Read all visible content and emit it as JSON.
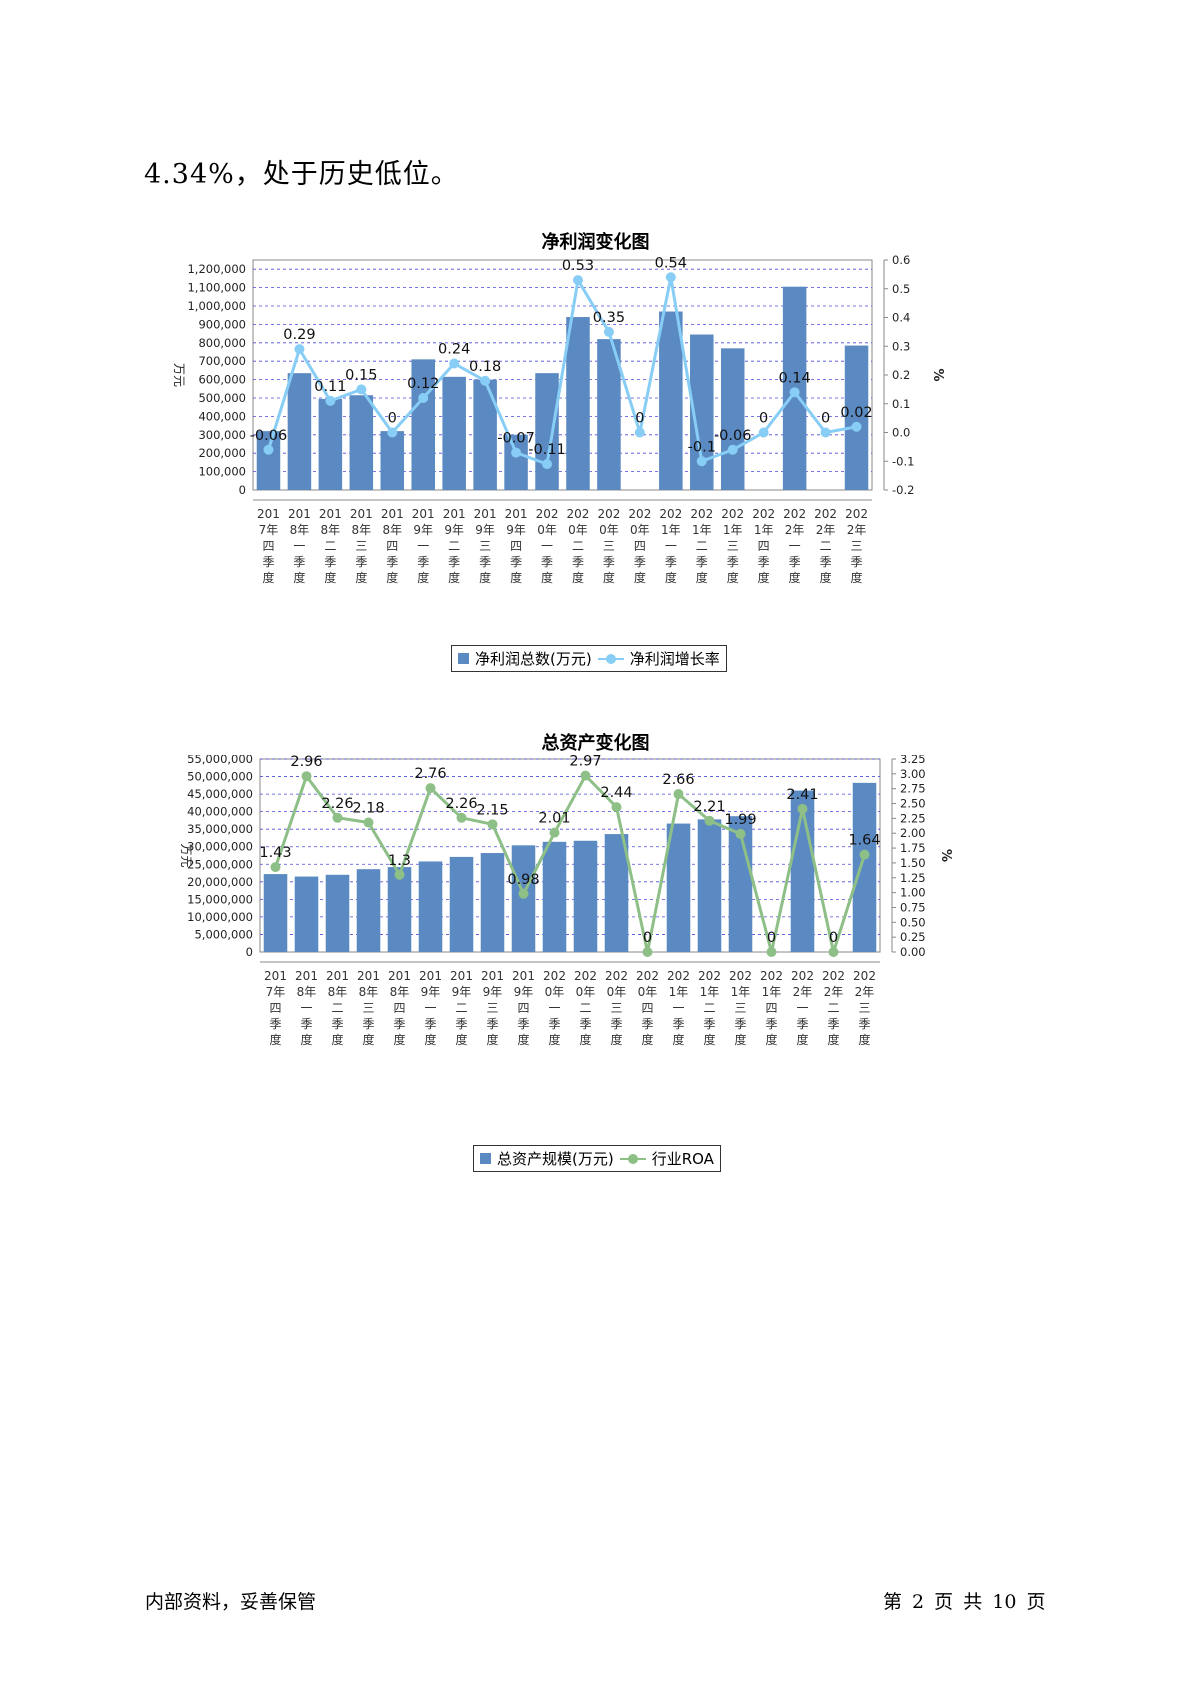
{
  "intro_text": "4.34%，处于历史低位。",
  "footer": {
    "left": "内部资料，妥善保管",
    "right": "第 2 页  共 10 页"
  },
  "colors": {
    "bar": "#5b8ac2",
    "line1": "#87cdf5",
    "line2": "#8dbf87",
    "grid": "#4b4bd8"
  },
  "categories": [
    [
      "201",
      "7年",
      "四",
      "季",
      "度"
    ],
    [
      "201",
      "8年",
      "一",
      "季",
      "度"
    ],
    [
      "201",
      "8年",
      "二",
      "季",
      "度"
    ],
    [
      "201",
      "8年",
      "三",
      "季",
      "度"
    ],
    [
      "201",
      "8年",
      "四",
      "季",
      "度"
    ],
    [
      "201",
      "9年",
      "一",
      "季",
      "度"
    ],
    [
      "201",
      "9年",
      "二",
      "季",
      "度"
    ],
    [
      "201",
      "9年",
      "三",
      "季",
      "度"
    ],
    [
      "201",
      "9年",
      "四",
      "季",
      "度"
    ],
    [
      "202",
      "0年",
      "一",
      "季",
      "度"
    ],
    [
      "202",
      "0年",
      "二",
      "季",
      "度"
    ],
    [
      "202",
      "0年",
      "三",
      "季",
      "度"
    ],
    [
      "202",
      "0年",
      "四",
      "季",
      "度"
    ],
    [
      "202",
      "1年",
      "一",
      "季",
      "度"
    ],
    [
      "202",
      "1年",
      "二",
      "季",
      "度"
    ],
    [
      "202",
      "1年",
      "三",
      "季",
      "度"
    ],
    [
      "202",
      "1年",
      "四",
      "季",
      "度"
    ],
    [
      "202",
      "2年",
      "一",
      "季",
      "度"
    ],
    [
      "202",
      "2年",
      "二",
      "季",
      "度"
    ],
    [
      "202",
      "2年",
      "三",
      "季",
      "度"
    ]
  ],
  "chart_data": [
    {
      "type": "bar",
      "title": "净利润变化图",
      "ylabel": "万元",
      "y2label": "%",
      "ylim": [
        0,
        1250000
      ],
      "y2lim": [
        -0.2,
        0.6
      ],
      "yticks": [
        "0",
        "100,000",
        "200,000",
        "300,000",
        "400,000",
        "500,000",
        "600,000",
        "700,000",
        "800,000",
        "900,000",
        "1,000,000",
        "1,100,000",
        "1,200,000"
      ],
      "yticks_values": [
        0,
        100000,
        200000,
        300000,
        400000,
        500000,
        600000,
        700000,
        800000,
        900000,
        1000000,
        1100000,
        1200000
      ],
      "y2ticks": [
        "-0.2",
        "-0.1",
        "0.0",
        "0.1",
        "0.2",
        "0.3",
        "0.4",
        "0.5",
        "0.6"
      ],
      "y2ticks_values": [
        -0.2,
        -0.1,
        0,
        0.1,
        0.2,
        0.3,
        0.4,
        0.5,
        0.6
      ],
      "legend_position": "bottom",
      "series": [
        {
          "name": "净利润总数(万元)",
          "kind": "bar",
          "values": [
            320000,
            635000,
            495000,
            515000,
            320000,
            710000,
            615000,
            600000,
            300000,
            635000,
            940000,
            820000,
            0,
            970000,
            845000,
            770000,
            0,
            1105000,
            0,
            785000
          ]
        },
        {
          "name": "净利润增长率",
          "kind": "line",
          "axis": "right",
          "values": [
            -0.06,
            0.29,
            0.11,
            0.15,
            0,
            0.12,
            0.24,
            0.18,
            -0.07,
            -0.11,
            0.53,
            0.35,
            0,
            0.54,
            -0.1,
            -0.06,
            0,
            0.14,
            0,
            0.02
          ],
          "labels": [
            "-0.06",
            "0.29",
            "0.11",
            "0.15",
            "0",
            "0.12",
            "0.24",
            "0.18",
            "-0.07",
            "-0.11",
            "0.53",
            "0.35",
            "0",
            "0.54",
            "-0.1",
            "-0.06",
            "0",
            "0.14",
            "0",
            "0.02"
          ]
        }
      ]
    },
    {
      "type": "bar",
      "title": "总资产变化图",
      "ylabel": "万元",
      "y2label": "%",
      "ylim": [
        0,
        55000000
      ],
      "y2lim": [
        0,
        3.25
      ],
      "yticks": [
        "0",
        "5,000,000",
        "10,000,000",
        "15,000,000",
        "20,000,000",
        "25,000,000",
        "30,000,000",
        "35,000,000",
        "40,000,000",
        "45,000,000",
        "50,000,000",
        "55,000,000"
      ],
      "yticks_values": [
        0,
        5000000,
        10000000,
        15000000,
        20000000,
        25000000,
        30000000,
        35000000,
        40000000,
        45000000,
        50000000,
        55000000
      ],
      "y2ticks": [
        "0.00",
        "0.25",
        "0.50",
        "0.75",
        "1.00",
        "1.25",
        "1.50",
        "1.75",
        "2.00",
        "2.25",
        "2.50",
        "2.75",
        "3.00",
        "3.25"
      ],
      "y2ticks_values": [
        0,
        0.25,
        0.5,
        0.75,
        1,
        1.25,
        1.5,
        1.75,
        2,
        2.25,
        2.5,
        2.75,
        3,
        3.25
      ],
      "legend_position": "bottom",
      "series": [
        {
          "name": "总资产规模(万元)",
          "kind": "bar",
          "values": [
            22200000,
            21500000,
            22000000,
            23600000,
            24200000,
            25800000,
            27100000,
            28200000,
            30400000,
            31400000,
            31700000,
            33600000,
            0,
            36600000,
            37800000,
            38700000,
            0,
            46000000,
            0,
            48200000
          ]
        },
        {
          "name": "行业ROA",
          "kind": "line",
          "axis": "right",
          "values": [
            1.43,
            2.96,
            2.26,
            2.18,
            1.3,
            2.76,
            2.26,
            2.15,
            0.98,
            2.01,
            2.97,
            2.44,
            0,
            2.66,
            2.21,
            1.99,
            0,
            2.41,
            0,
            1.64
          ],
          "labels": [
            "1.43",
            "2.96",
            "2.26",
            "2.18",
            "1.3",
            "2.76",
            "2.26",
            "2.15",
            "0.98",
            "2.01",
            "2.97",
            "2.44",
            "0",
            "2.66",
            "2.21",
            "1.99",
            "0",
            "2.41",
            "0",
            "1.64"
          ]
        }
      ]
    }
  ]
}
